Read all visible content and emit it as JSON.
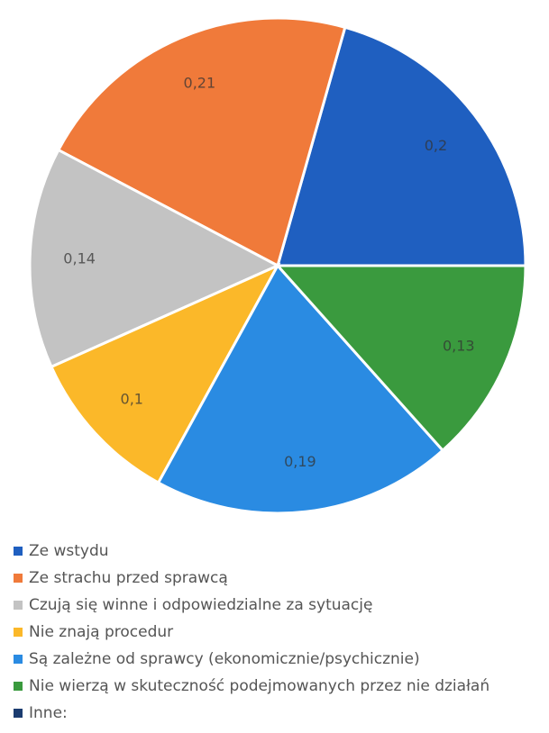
{
  "chart_data": {
    "type": "pie",
    "categories": [
      "Ze wstydu",
      "Ze strachu przed sprawcą",
      "Czują się winne i odpowiedzialne za sytuację",
      "Nie znają procedur",
      "Są zależne od sprawcy (ekonomicznie/psychicznie)",
      "Nie wierzą w skuteczność podejmowanych przez nie działań",
      "Inne:"
    ],
    "values": [
      0.2,
      0.21,
      0.14,
      0.1,
      0.19,
      0.13,
      0
    ],
    "value_labels": [
      "0,2",
      "0,21",
      "0,14",
      "0,1",
      "0,19",
      "0,13",
      null
    ],
    "colors": [
      "#1f5fc0",
      "#f07a3a",
      "#c3c3c3",
      "#fbb829",
      "#2a8be2",
      "#3a9a3e",
      "#1b3c70"
    ],
    "legend": "bottom"
  }
}
